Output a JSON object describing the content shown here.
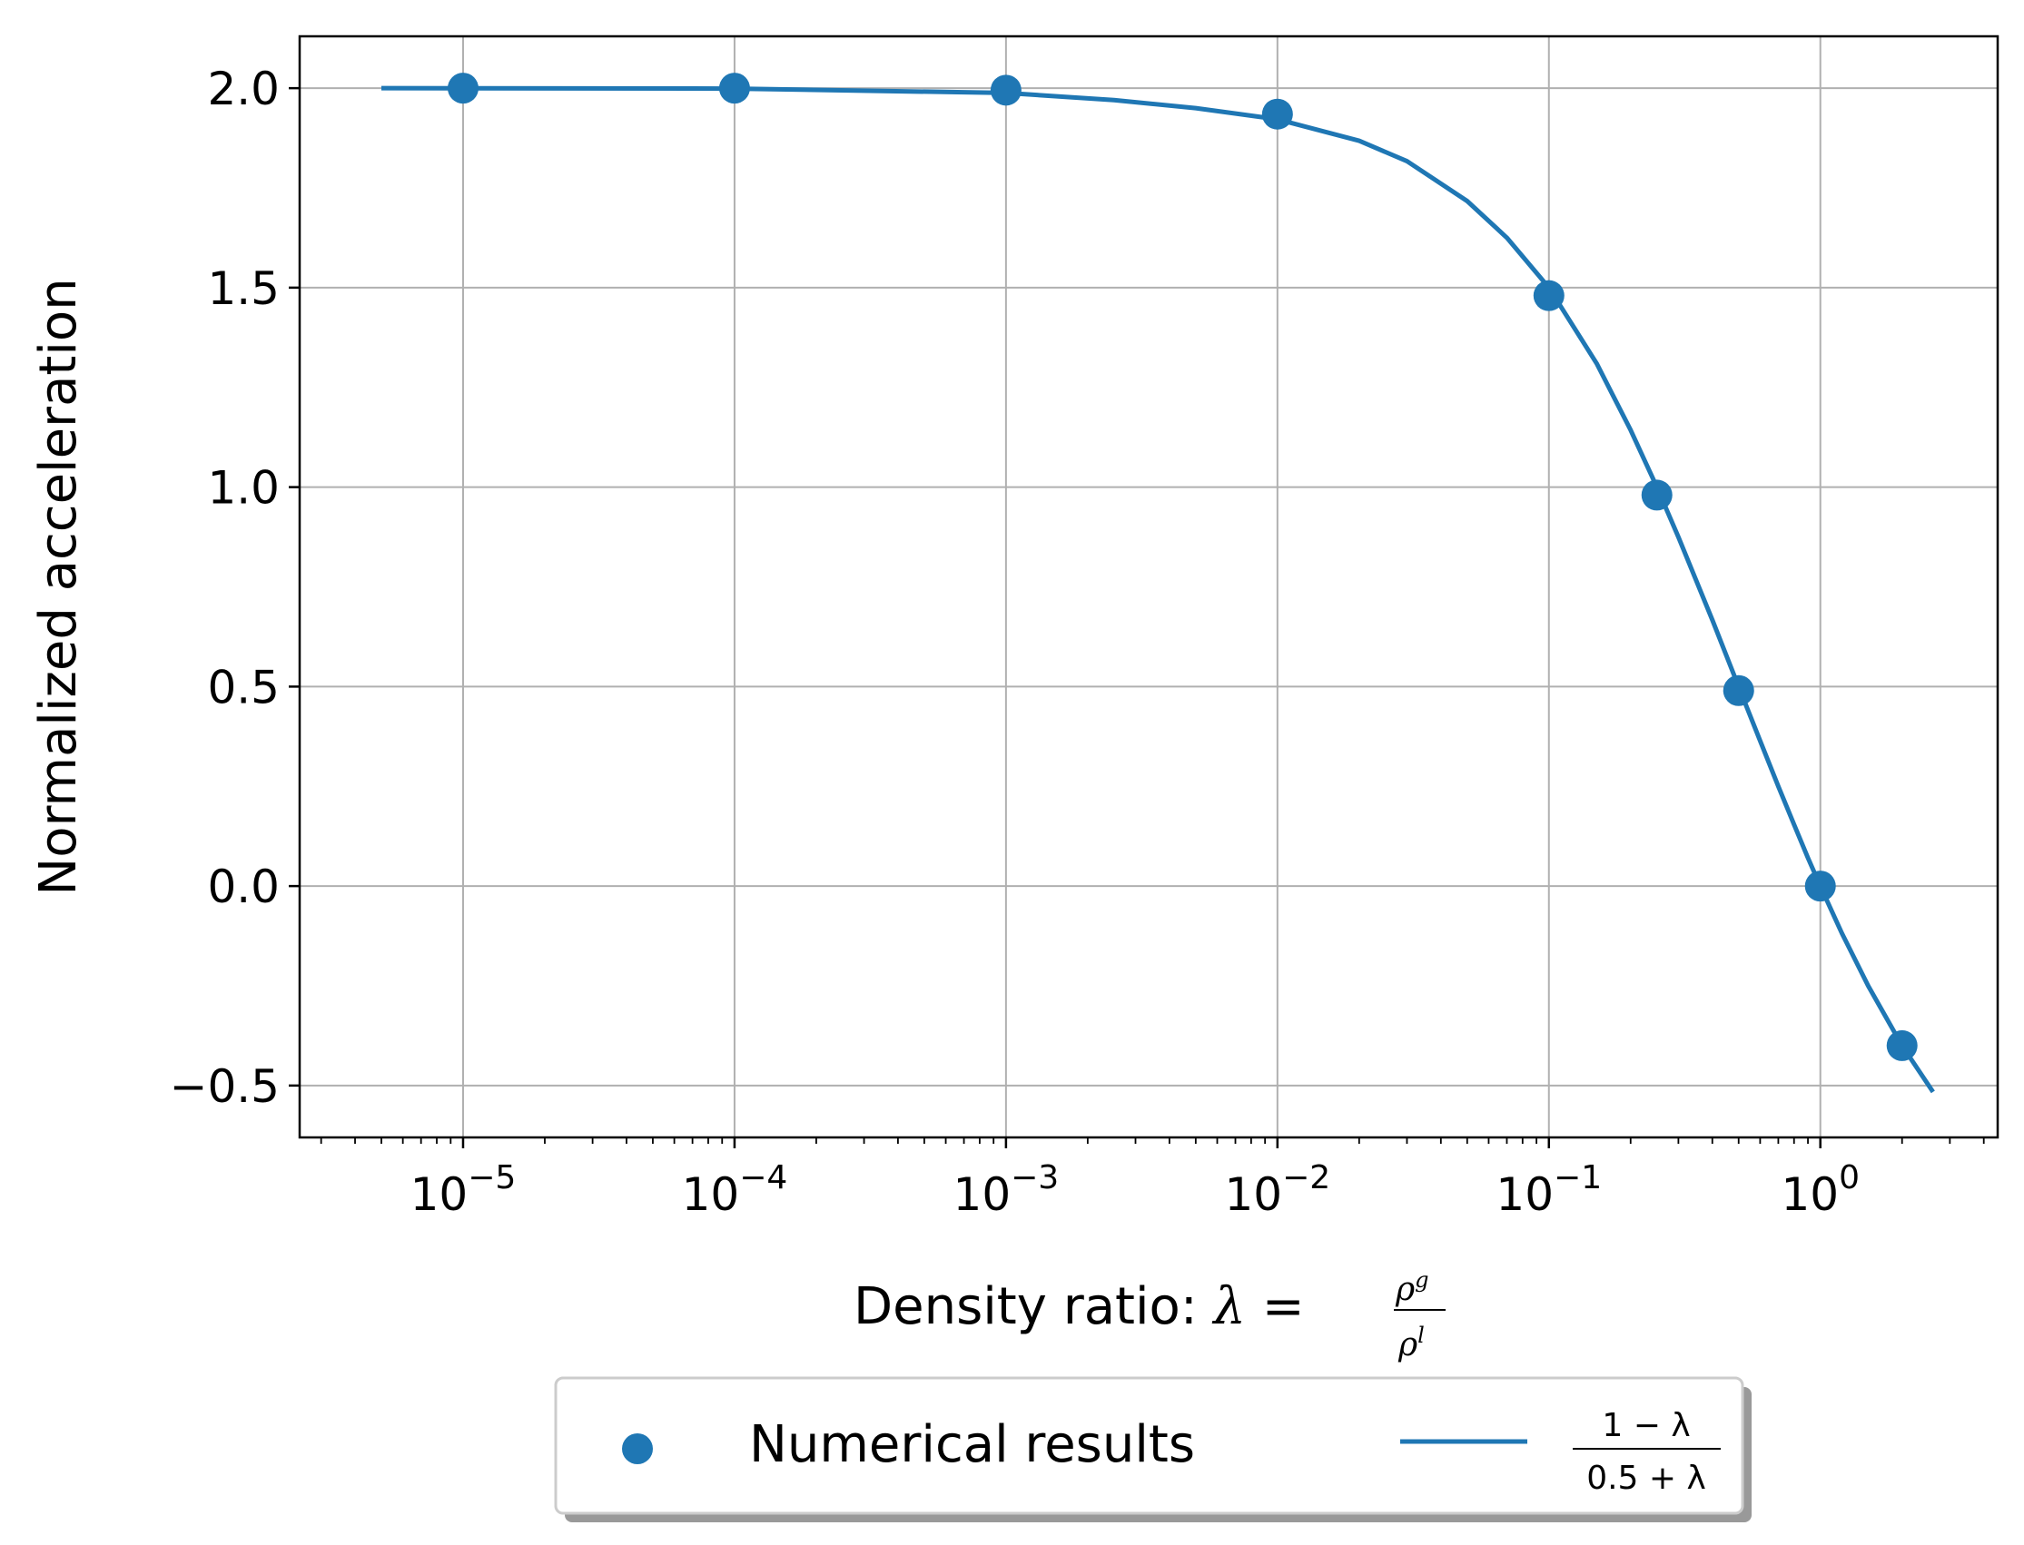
{
  "chart_data": {
    "type": "scatter",
    "xscale": "log",
    "xlim": [
      2.5e-06,
      4.5
    ],
    "ylim": [
      -0.63,
      2.13
    ],
    "grid": true,
    "xticks": [
      1e-05,
      0.0001,
      0.001,
      0.01,
      0.1,
      1
    ],
    "xtick_labels": [
      {
        "base": "10",
        "exp": "−5"
      },
      {
        "base": "10",
        "exp": "−4"
      },
      {
        "base": "10",
        "exp": "−3"
      },
      {
        "base": "10",
        "exp": "−2"
      },
      {
        "base": "10",
        "exp": "−1"
      },
      {
        "base": "10",
        "exp": "0"
      }
    ],
    "yticks": [
      2.0,
      1.5,
      1.0,
      0.5,
      0.0,
      -0.5
    ],
    "ytick_labels": [
      "2.0",
      "1.5",
      "1.0",
      "0.5",
      "0.0",
      "−0.5"
    ],
    "xlabel": {
      "prefix": "Density ratio: ",
      "symbol": "λ",
      "eq": " = ",
      "num": "ρ",
      "num_sup": "g",
      "den": "ρ",
      "den_sup": "l"
    },
    "ylabel": "Normalized acceleration",
    "series": [
      {
        "name": "Numerical results",
        "kind": "scatter",
        "color": "#1f77b4",
        "x": [
          1e-05,
          0.0001,
          0.001,
          0.01,
          0.1,
          0.25,
          0.5,
          1.0,
          2.0
        ],
        "y": [
          2.0,
          2.0,
          1.995,
          1.935,
          1.48,
          0.98,
          0.49,
          0.0,
          -0.4
        ]
      },
      {
        "name_parts": {
          "num": "1 − λ",
          "den": "0.5 + λ"
        },
        "kind": "line",
        "color": "#1f77b4",
        "x": [
          5e-06,
          1e-05,
          0.0001,
          0.001,
          0.0025,
          0.005,
          0.01,
          0.02,
          0.03,
          0.05,
          0.07,
          0.1,
          0.15,
          0.2,
          0.25,
          0.3,
          0.4,
          0.5,
          0.6,
          0.7,
          0.8,
          0.9,
          1.0,
          1.2,
          1.5,
          2.0,
          2.6
        ],
        "y": [
          2.0,
          1.9999,
          1.999,
          1.988,
          1.97,
          1.95,
          1.922,
          1.868,
          1.817,
          1.717,
          1.625,
          1.5,
          1.31,
          1.143,
          1.0,
          0.875,
          0.667,
          0.5,
          0.364,
          0.25,
          0.154,
          0.071,
          0.0,
          -0.118,
          -0.25,
          -0.4,
          -0.516
        ]
      }
    ],
    "legend": {
      "placement": "bottom-center, below axes",
      "entries": [
        {
          "label": "Numerical results",
          "marker": "circle"
        },
        {
          "label_parts": {
            "num": "1 − λ",
            "den": "0.5 + λ"
          },
          "marker": "line"
        }
      ]
    }
  }
}
